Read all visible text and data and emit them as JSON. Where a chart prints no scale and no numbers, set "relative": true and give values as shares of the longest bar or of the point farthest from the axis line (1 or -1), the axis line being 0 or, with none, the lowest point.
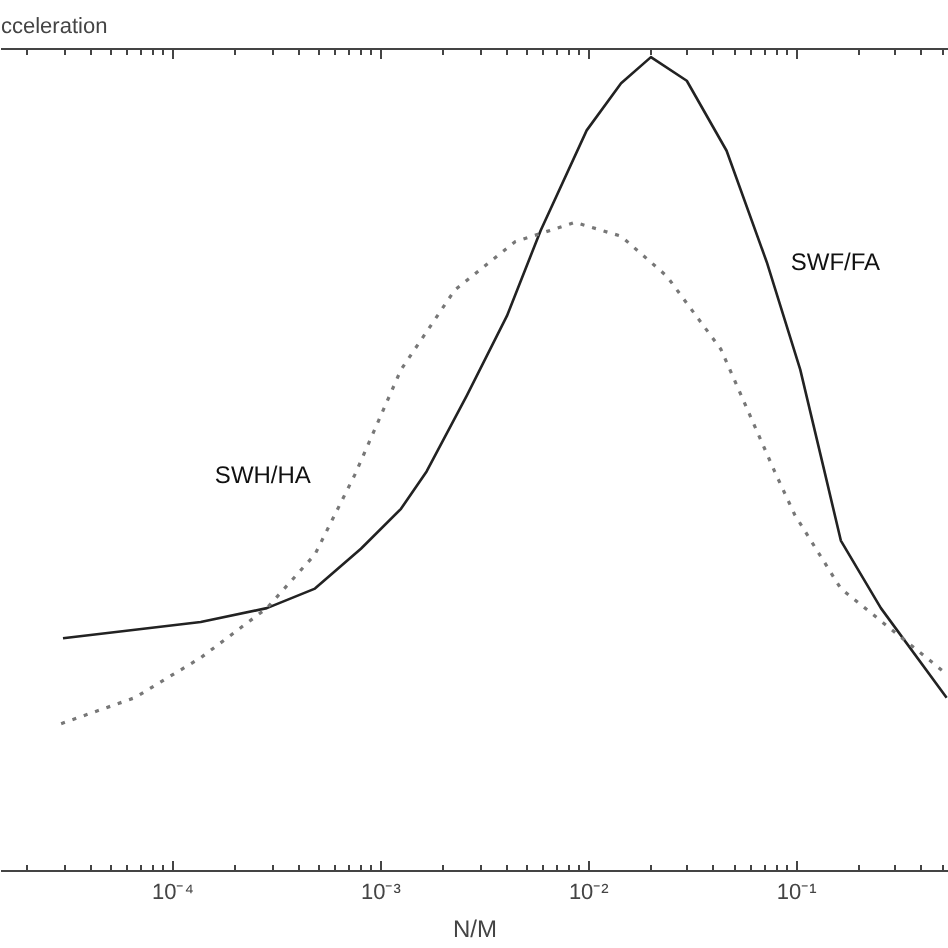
{
  "chart_data": {
    "type": "line",
    "title": "cceleration",
    "xlabel": "N/M",
    "log": "x",
    "relative": true,
    "grid": false,
    "xlim": [
      1.49e-05,
      0.54
    ],
    "xticks": [
      {
        "value": 0.0001,
        "label": "10⁻⁴"
      },
      {
        "value": 0.001,
        "label": "10⁻³"
      },
      {
        "value": 0.01,
        "label": "10⁻²"
      },
      {
        "value": 0.1,
        "label": "10⁻¹"
      }
    ],
    "series": [
      {
        "name": "SWF/FA",
        "color": "#222222",
        "line_style": "solid",
        "x": [
          2.96e-05,
          0.000136,
          0.000283,
          0.000482,
          0.000802,
          0.00125,
          0.00166,
          0.00259,
          0.00404,
          0.00587,
          0.00977,
          0.0143,
          0.0199,
          0.0296,
          0.046,
          0.0718,
          0.104,
          0.136,
          0.163,
          0.254,
          0.526
        ],
        "values": [
          0.286,
          0.306,
          0.323,
          0.347,
          0.396,
          0.445,
          0.491,
          0.584,
          0.682,
          0.787,
          0.91,
          0.968,
          1.0,
          0.971,
          0.885,
          0.748,
          0.616,
          0.491,
          0.406,
          0.323,
          0.213
        ]
      },
      {
        "name": "SWH/HA",
        "color": "#777777",
        "line_style": "dotted",
        "x": [
          2.9e-05,
          6.56e-05,
          0.000136,
          0.000283,
          0.000482,
          0.00075,
          0.00125,
          0.00227,
          0.00441,
          0.00857,
          0.0143,
          0.0237,
          0.0432,
          0.0783,
          0.0977,
          0.163,
          0.526
        ],
        "values": [
          0.181,
          0.213,
          0.262,
          0.323,
          0.389,
          0.487,
          0.616,
          0.714,
          0.773,
          0.797,
          0.78,
          0.731,
          0.641,
          0.491,
          0.438,
          0.347,
          0.242
        ]
      }
    ]
  }
}
